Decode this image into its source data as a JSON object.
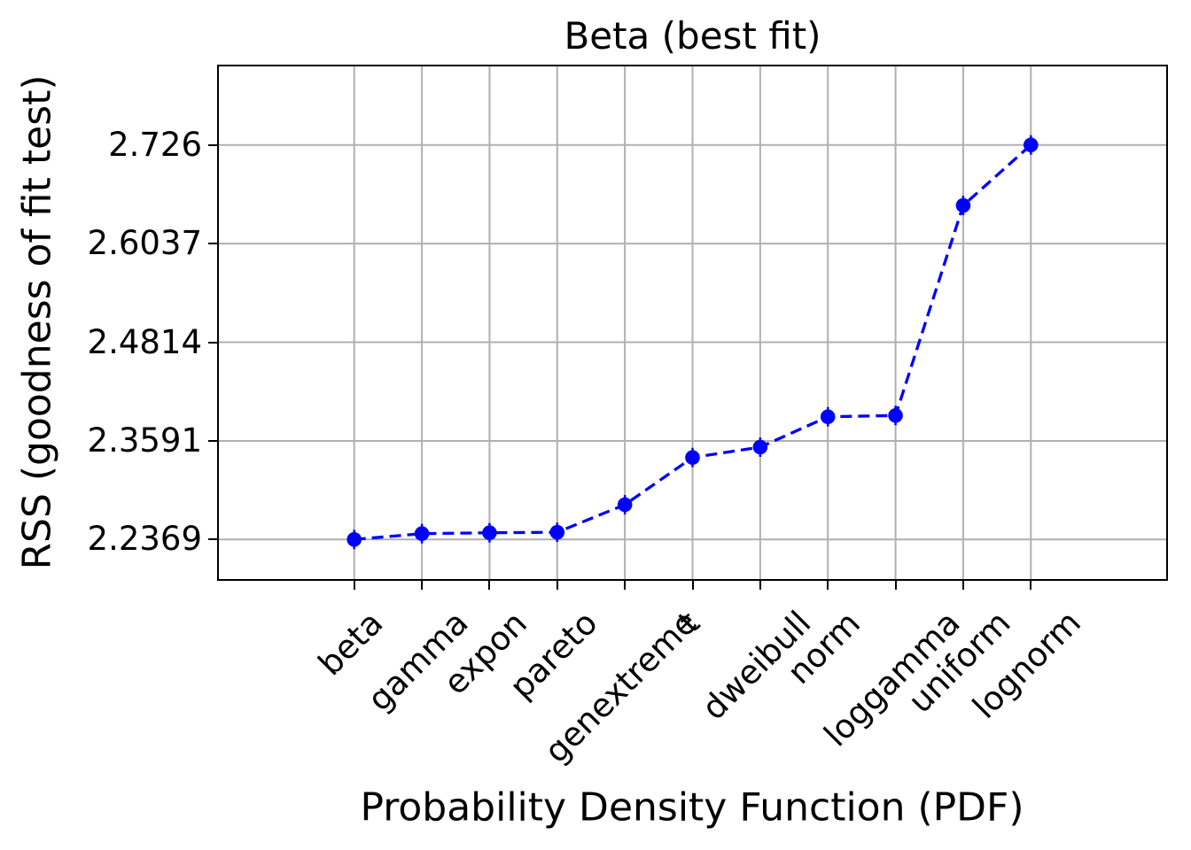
{
  "chart_data": {
    "type": "line",
    "title": "Beta (best fit)",
    "xlabel": "Probability Density Function (PDF)",
    "ylabel": "RSS (goodness of fit test)",
    "categories": [
      "beta",
      "gamma",
      "expon",
      "pareto",
      "genextreme",
      "t",
      "dweibull",
      "norm",
      "loggamma",
      "uniform",
      "lognorm"
    ],
    "series": [
      {
        "name": "RSS (goodness of fit test)",
        "values": [
          2.2369,
          2.2441,
          2.2452,
          2.2458,
          2.28,
          2.3385,
          2.3514,
          2.389,
          2.3906,
          2.651,
          2.726
        ]
      }
    ],
    "yticks": [
      2.2369,
      2.3591,
      2.4814,
      2.6037,
      2.726
    ],
    "ytick_labels": [
      "2.2369",
      "2.3591",
      "2.4814",
      "2.6037",
      "2.726"
    ],
    "ylim": [
      2.1878,
      2.8234
    ],
    "xlim": [
      -2,
      12
    ],
    "grid": true,
    "legend_position": "none",
    "line_style": "dashed",
    "marker": "circle",
    "x_tick_rotation_deg": 45,
    "colors": {
      "line": "#0000ff",
      "grid": "#b0b0b0",
      "spine": "#000000",
      "text": "#000000",
      "background": "#ffffff"
    }
  }
}
